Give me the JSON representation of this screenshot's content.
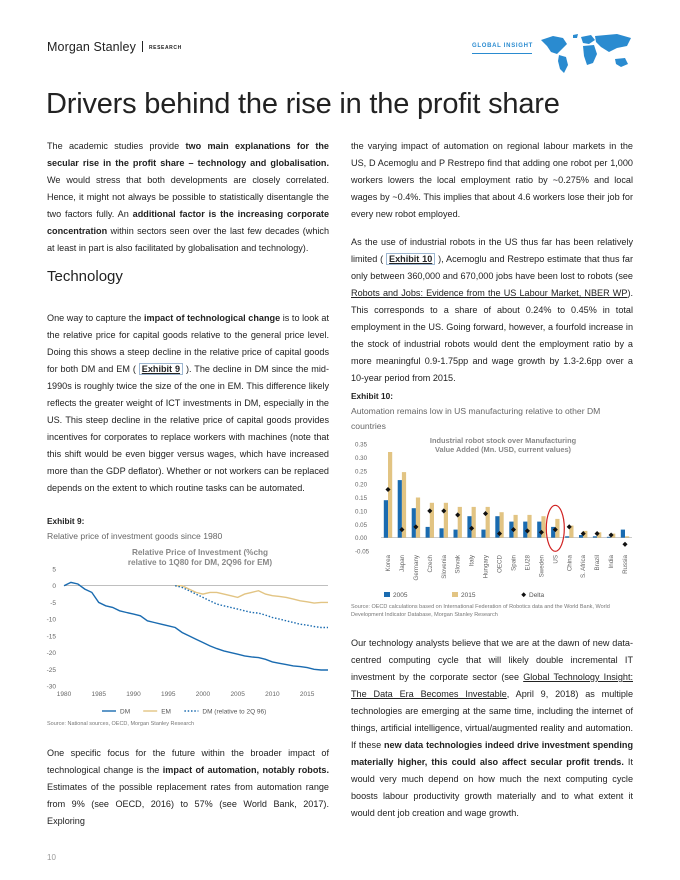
{
  "header": {
    "brand": "Morgan Stanley",
    "division": "RESEARCH",
    "series": "GLOBAL INSIGHT"
  },
  "page_title": "Drivers behind the rise in the profit share",
  "left_col": {
    "intro": {
      "p1": "The academic studies provide ",
      "b1": "two main explanations for the secular rise in the profit share – technology and globalisation.",
      "p2": " We would stress that both developments are closely correlated. Hence, it might not always be possible to statistically disentangle the two factors fully. An ",
      "b2": "additional factor is the increasing corporate concentration",
      "p3": " within sectors seen over the last few decades (which at least in part is also facilitated by globalisation and technology)."
    },
    "section_heading": "Technology",
    "tech": {
      "p1": "One way to capture the ",
      "b1": "impact of technological change",
      "p2": " is to look at the relative price for capital goods relative to the general price level. Doing this shows a steep decline in the relative price of capital goods for both DM and EM ( ",
      "ref": "Exhibit 9",
      "p3": " ). The decline in DM since the mid-1990s is roughly twice the size of the one in EM. This difference likely reflects the greater weight of ICT investments in DM, especially in the US. This steep decline in the relative price of capital goods provides incentives for corporates to replace workers with machines (note that this shift would be even bigger versus wages, which have increased more than the GDP deflator). Whether or not workers can be replaced depends on the extent to which routine tasks can be automated."
    },
    "automation": {
      "p1": "One specific focus for the future within the broader impact of technological change is the ",
      "b1": "impact of automation, notably robots.",
      "p2": " Estimates of the possible replacement rates from automation range from 9% (see OECD, 2016) to 57% (see World Bank, 2017). Exploring"
    }
  },
  "right_col": {
    "p_a": "the varying impact of automation on regional labour markets in the US, D Acemoglu and P Restrepo find that adding one robot per 1,000 workers lowers the local employment ratio by ~0.275% and local wages by ~0.4%. This implies that about 4.6 workers lose their job for every new robot employed.",
    "p_b1": "As the use of industrial robots in the US thus far has been relatively limited ( ",
    "p_b_ref": "Exhibit 10",
    "p_b2": " ), Acemoglu and Restrepo estimate that thus far only between 360,000 and 670,000 jobs have been lost to robots (see ",
    "p_b_link": "Robots and Jobs: Evidence from the US Labour Market, NBER WP",
    "p_b3": "). This corresponds to a share of about 0.24% to 0.45% in total employment in the US. Going forward, however, a fourfold increase in the stock of industrial robots would dent the employment ratio by a more meaningful 0.9-1.75pp and wage growth by 1.3-2.6pp over a 10-year period from 2015.",
    "p_c1": "Our technology analysts believe that we are at the dawn of new data-centred computing cycle that will likely double incremental IT investment by the corporate sector (see ",
    "p_c_link": "Global Technology Insight: The Data Era Becomes Investable",
    "p_c2": ", April 9, 2018) as multiple technologies are emerging at the same time, including the internet of things, artificial intelligence, virtual/augmented reality and automation. If these ",
    "p_c_b": "new data technologies indeed drive investment spending materially higher, this could also affect secular profit trends.",
    "p_c3": " It would very much depend on how much the next computing cycle boosts labour productivity growth materially and to what extent it would dent job creation and wage growth."
  },
  "exhibit9": {
    "label": "Exhibit 9:",
    "subtitle": "Relative price of investment goods since 1980",
    "source": "Source: National sources, OECD, Morgan Stanley Research"
  },
  "exhibit10": {
    "label": "Exhibit 10:",
    "subtitle": "Automation remains low in US manufacturing relative to other DM countries",
    "source": "Source: OECD calculations based on International Federation of Robotics data and the World Bank, World Development Indicator Database, Morgan Stanley Research"
  },
  "page_number": "10",
  "colors": {
    "dm": "#1a6bb0",
    "em": "#e2c483",
    "delta": "#111111",
    "accent": "#2a8bd0",
    "highlight": "#d02020"
  },
  "chart_data": [
    {
      "type": "line",
      "title": "Relative Price of Investment (%chg relative to 1Q80 for DM, 2Q96 for EM)",
      "xlabel": "",
      "ylabel": "",
      "xlim": [
        1980,
        2018
      ],
      "ylim": [
        -30,
        5
      ],
      "x_ticks": [
        1980,
        1985,
        1990,
        1995,
        2000,
        2005,
        2010,
        2015
      ],
      "y_ticks": [
        5,
        0,
        -5,
        -10,
        -15,
        -20,
        -25,
        -30
      ],
      "legend_position": "bottom",
      "series": [
        {
          "name": "DM",
          "style": "solid",
          "color": "#1a6bb0",
          "x": [
            1980,
            1981,
            1982,
            1983,
            1984,
            1985,
            1986,
            1987,
            1988,
            1989,
            1990,
            1991,
            1992,
            1993,
            1994,
            1995,
            1996,
            1997,
            1998,
            1999,
            2000,
            2001,
            2002,
            2003,
            2004,
            2005,
            2006,
            2007,
            2008,
            2009,
            2010,
            2011,
            2012,
            2013,
            2014,
            2015,
            2016,
            2017,
            2018
          ],
          "y": [
            0,
            1,
            0.5,
            -1,
            -2,
            -5,
            -6,
            -6.5,
            -7.5,
            -8,
            -8.5,
            -9,
            -10.5,
            -11,
            -11.5,
            -12,
            -12.5,
            -14,
            -15,
            -16,
            -17,
            -18,
            -18.8,
            -19.5,
            -20,
            -20.5,
            -21,
            -21.3,
            -21.5,
            -22,
            -22.8,
            -23.2,
            -23.6,
            -24,
            -24.2,
            -24.5,
            -25,
            -25.2,
            -25.2
          ]
        },
        {
          "name": "EM",
          "style": "solid",
          "color": "#e2c483",
          "x": [
            1996,
            1997,
            1998,
            1999,
            2000,
            2001,
            2002,
            2003,
            2004,
            2005,
            2006,
            2007,
            2008,
            2009,
            2010,
            2011,
            2012,
            2013,
            2014,
            2015,
            2016,
            2017,
            2018
          ],
          "y": [
            0,
            0,
            -1,
            -2,
            -2.5,
            -2,
            -2,
            -2.5,
            -3,
            -3.5,
            -2.5,
            -2,
            -1.5,
            -2.5,
            -3,
            -3.2,
            -3.5,
            -4,
            -4.5,
            -4.8,
            -5.2,
            -5,
            -5
          ]
        },
        {
          "name": "DM (relative to 2Q 96)",
          "style": "dotted",
          "color": "#1a6bb0",
          "x": [
            1996,
            1997,
            1998,
            1999,
            2000,
            2001,
            2002,
            2003,
            2004,
            2005,
            2006,
            2007,
            2008,
            2009,
            2010,
            2011,
            2012,
            2013,
            2014,
            2015,
            2016,
            2017,
            2018
          ],
          "y": [
            0,
            -0.5,
            -1.5,
            -2.5,
            -3.5,
            -4.5,
            -5.5,
            -6,
            -6.5,
            -7,
            -7.5,
            -8,
            -8.2,
            -8.8,
            -9.5,
            -10,
            -10.5,
            -11,
            -11.5,
            -11.8,
            -12.2,
            -12.5,
            -12.5
          ]
        }
      ]
    },
    {
      "type": "bar",
      "title": "Industrial robot stock over Manufacturing Value Added (Mn. USD, current values)",
      "xlabel": "",
      "ylabel": "",
      "ylim": [
        -0.05,
        0.35
      ],
      "y_ticks": [
        0.35,
        0.3,
        0.25,
        0.2,
        0.15,
        0.1,
        0.05,
        0.0,
        -0.05
      ],
      "legend_position": "bottom",
      "highlighted_category": "US",
      "categories": [
        "Korea",
        "Japan",
        "Germany",
        "Czech",
        "Slovenia",
        "Slovak",
        "Italy",
        "Hungary",
        "OECD",
        "Spain",
        "EU28",
        "Sweden",
        "US",
        "China",
        "S. Africa",
        "Brazil",
        "India",
        "Russia"
      ],
      "series": [
        {
          "name": "2005",
          "kind": "bar",
          "color": "#1a6bb0",
          "values": [
            0.14,
            0.215,
            0.11,
            0.04,
            0.035,
            0.03,
            0.08,
            0.03,
            0.08,
            0.06,
            0.06,
            0.06,
            0.04,
            0.005,
            0.01,
            0.005,
            0.003,
            0.03
          ]
        },
        {
          "name": "2015",
          "kind": "bar",
          "color": "#e2c483",
          "values": [
            0.32,
            0.245,
            0.15,
            0.13,
            0.13,
            0.115,
            0.115,
            0.115,
            0.095,
            0.085,
            0.085,
            0.08,
            0.07,
            0.045,
            0.025,
            0.02,
            0.015,
            0.005
          ]
        },
        {
          "name": "Delta",
          "kind": "marker",
          "color": "#111111",
          "values": [
            0.18,
            0.03,
            0.04,
            0.1,
            0.1,
            0.085,
            0.035,
            0.09,
            0.015,
            0.03,
            0.025,
            0.02,
            0.03,
            0.04,
            0.015,
            0.015,
            0.01,
            -0.025
          ]
        }
      ]
    }
  ]
}
